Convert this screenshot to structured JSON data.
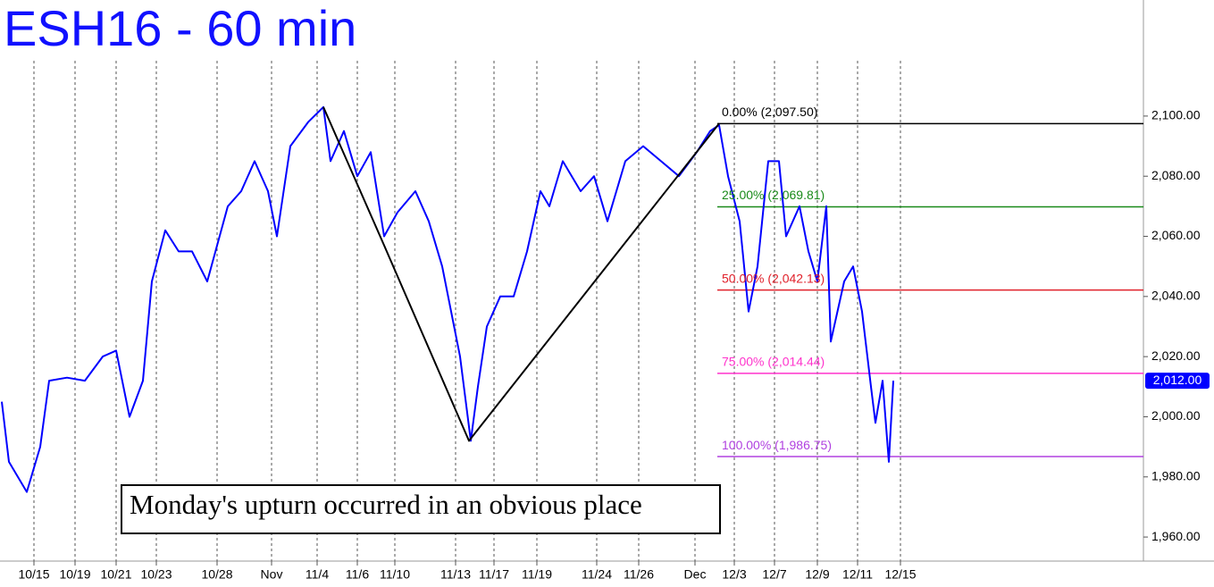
{
  "chart_data": {
    "type": "line",
    "title": "ESH16 - 60 min",
    "annotation": "Monday's upturn occurred in an obvious place",
    "xlim": [
      0,
      640
    ],
    "ylim": [
      1952,
      2138.6
    ],
    "xticks": [
      {
        "value": 19,
        "label": "10/15"
      },
      {
        "value": 42,
        "label": "10/19"
      },
      {
        "value": 65,
        "label": "10/21"
      },
      {
        "value": 87.5,
        "label": "10/23"
      },
      {
        "value": 121.5,
        "label": "10/28"
      },
      {
        "value": 152,
        "label": "Nov"
      },
      {
        "value": 177.5,
        "label": "11/4"
      },
      {
        "value": 200,
        "label": "11/6"
      },
      {
        "value": 221,
        "label": "11/10"
      },
      {
        "value": 255,
        "label": "11/13"
      },
      {
        "value": 276.5,
        "label": "11/17"
      },
      {
        "value": 300.5,
        "label": "11/19"
      },
      {
        "value": 334,
        "label": "11/24"
      },
      {
        "value": 357.5,
        "label": "11/26"
      },
      {
        "value": 389,
        "label": "Dec"
      },
      {
        "value": 411,
        "label": "12/3"
      },
      {
        "value": 433.5,
        "label": "12/7"
      },
      {
        "value": 457.5,
        "label": "12/9"
      },
      {
        "value": 480,
        "label": "12/11"
      },
      {
        "value": 504,
        "label": "12/15"
      }
    ],
    "yticks": [
      {
        "value": 2100,
        "label": "2,100.00"
      },
      {
        "value": 2080,
        "label": "2,080.00"
      },
      {
        "value": 2060,
        "label": "2,060.00"
      },
      {
        "value": 2040,
        "label": "2,040.00"
      },
      {
        "value": 2020,
        "label": "2,020.00"
      },
      {
        "value": 2000,
        "label": "2,000.00"
      },
      {
        "value": 1980,
        "label": "1,980.00"
      },
      {
        "value": 1960,
        "label": "1,960.00"
      }
    ],
    "grid": true,
    "series": [
      {
        "name": "ESH16",
        "color": "#0000ff",
        "x": [
          1,
          5,
          15,
          22.5,
          27.5,
          37.5,
          47.5,
          57.5,
          65,
          72.5,
          80,
          85,
          92.5,
          100,
          107.5,
          116,
          127.5,
          135,
          142.5,
          150,
          155,
          162.5,
          172.5,
          181,
          185,
          192.5,
          200,
          207.5,
          215,
          222.5,
          232.5,
          240,
          247.5,
          252.5,
          257.5,
          263.5,
          267.5,
          272.5,
          280,
          287.5,
          295,
          302.5,
          307.5,
          315,
          325,
          332.5,
          340,
          350,
          360,
          370,
          380,
          390,
          397.5,
          402.5,
          407.5,
          414,
          419,
          424,
          430,
          436,
          440,
          447.5,
          452.5,
          457.5,
          462.5,
          465,
          472.5,
          477.5,
          482.5,
          487.5,
          490,
          494,
          497.5,
          500
        ],
        "values": [
          2005,
          1985,
          1975,
          1990,
          2012,
          2013,
          2012,
          2020,
          2022,
          2000,
          2012,
          2045,
          2062,
          2055,
          2055,
          2045,
          2070,
          2075,
          2085,
          2075,
          2060,
          2090,
          2098,
          2103,
          2085,
          2095,
          2080,
          2088,
          2060,
          2068,
          2075,
          2065,
          2050,
          2035,
          2020,
          1992,
          2010,
          2030,
          2040,
          2040,
          2055,
          2075,
          2070,
          2085,
          2075,
          2080,
          2065,
          2085,
          2090,
          2085,
          2080,
          2088,
          2095,
          2097,
          2080,
          2065,
          2035,
          2050,
          2085,
          2085,
          2060,
          2070,
          2055,
          2045,
          2070,
          2025,
          2045,
          2050,
          2035,
          2010,
          1998,
          2012,
          1985,
          2012
        ]
      }
    ],
    "trendline": {
      "color": "#000000",
      "x": [
        181,
        215,
        262.5,
        402.5
      ],
      "values": [
        2103,
        2057,
        1992,
        2097.5
      ]
    },
    "levels": [
      {
        "label": "0.00% (2,097.50)",
        "value": 2097.5,
        "color": "#000000",
        "x_start": 401.5
      },
      {
        "label": "25.00% (2,069.81)",
        "value": 2069.81,
        "color": "#1a8a1a",
        "x_start": 401.5
      },
      {
        "label": "50.00% (2,042.13)",
        "value": 2042.13,
        "color": "#e0202a",
        "x_start": 401.5
      },
      {
        "label": "75.00% (2,014.44)",
        "value": 2014.44,
        "color": "#ff33cc",
        "x_start": 401.5
      },
      {
        "label": "100.00% (1,986.75)",
        "value": 1986.75,
        "color": "#b040e0",
        "x_start": 401.5
      }
    ],
    "last_price": {
      "label": "2,012.00",
      "value": 2012,
      "color": "#0000ff"
    }
  }
}
